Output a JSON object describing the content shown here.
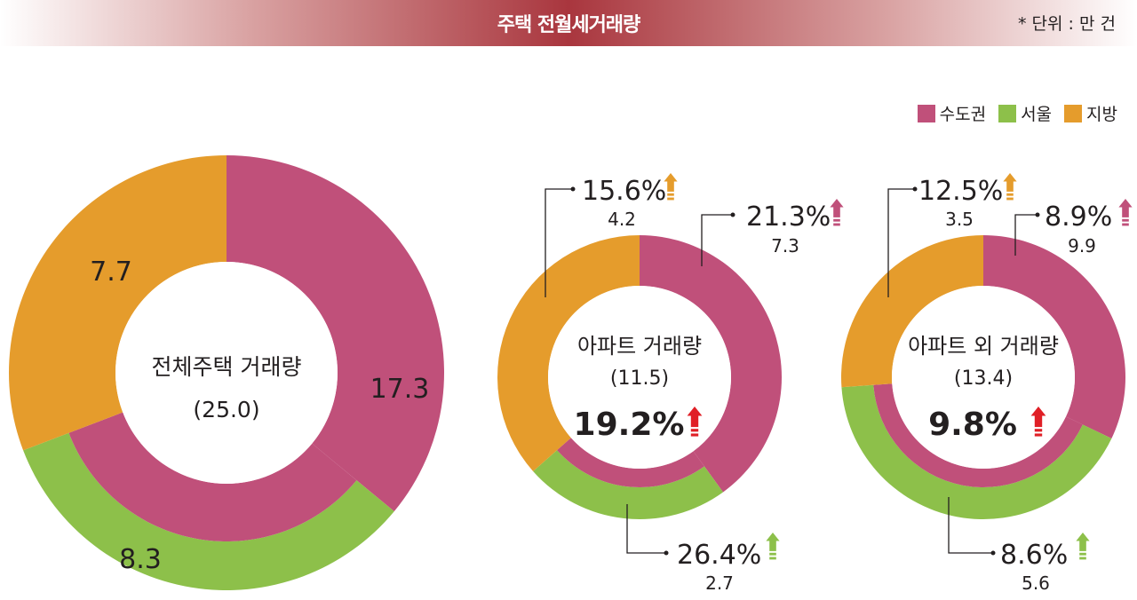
{
  "header": {
    "title": "주택 전월세거래량",
    "unit": "* 단위 : 만 건"
  },
  "colors": {
    "metro": "#c0507a",
    "seoul": "#8dc04a",
    "regional": "#e59c2c",
    "up_arrow": "#e01f26"
  },
  "legend": [
    {
      "name": "수도권",
      "color": "#c0507a"
    },
    {
      "name": "서울",
      "color": "#8dc04a"
    },
    {
      "name": "지방",
      "color": "#e59c2c"
    }
  ],
  "chart_data": [
    {
      "type": "pie",
      "center_label": "전체주택 거래량",
      "center_total": "(25.0)",
      "total": 25.0,
      "series": [
        {
          "name": "수도권",
          "value": 17.3,
          "label": "17.3"
        },
        {
          "name": "서울",
          "value": 8.3,
          "label": "8.3"
        },
        {
          "name": "지방",
          "value": 7.7,
          "label": "7.7"
        }
      ]
    },
    {
      "type": "pie",
      "center_label": "아파트 거래량",
      "center_total": "(11.5)",
      "center_change": "19.2%",
      "total": 11.5,
      "series": [
        {
          "name": "수도권",
          "value": 7.3,
          "label": "7.3",
          "change": "21.3%"
        },
        {
          "name": "서울",
          "value": 2.7,
          "label": "2.7",
          "change": "26.4%"
        },
        {
          "name": "지방",
          "value": 4.2,
          "label": "4.2",
          "change": "15.6%"
        }
      ]
    },
    {
      "type": "pie",
      "center_label": "아파트 외 거래량",
      "center_total": "(13.4)",
      "center_change": "9.8%",
      "total": 13.4,
      "series": [
        {
          "name": "수도권",
          "value": 9.9,
          "label": "9.9",
          "change": "8.9%"
        },
        {
          "name": "서울",
          "value": 5.6,
          "label": "5.6",
          "change": "8.6%"
        },
        {
          "name": "지방",
          "value": 3.5,
          "label": "3.5",
          "change": "12.5%"
        }
      ]
    }
  ]
}
